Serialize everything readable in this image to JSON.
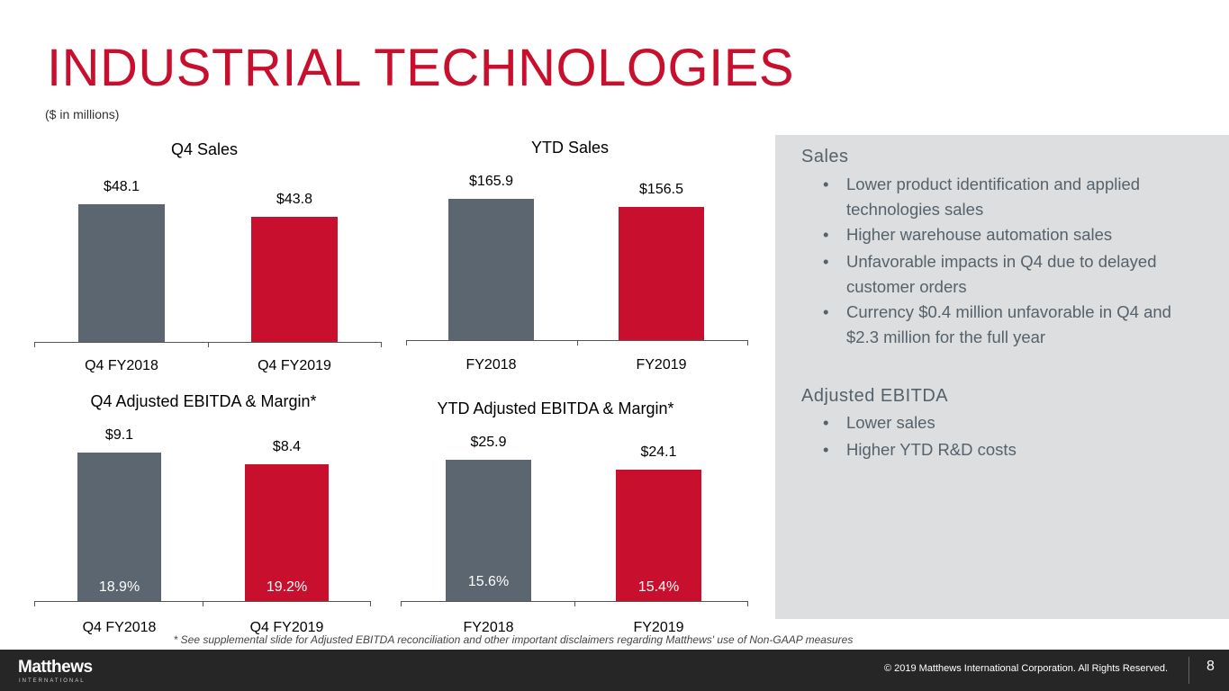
{
  "header": {
    "title": "INDUSTRIAL TECHNOLOGIES",
    "subtitle": "($ in millions)"
  },
  "colors": {
    "accent": "#c8102e",
    "gray_bar": "#5b6670",
    "panel": "#dcdedf",
    "footer": "#262626"
  },
  "chart_data": [
    {
      "type": "bar",
      "title": "Q4 Sales",
      "categories": [
        "Q4 FY2018",
        "Q4 FY2019"
      ],
      "values": [
        48.1,
        43.8
      ],
      "value_labels": [
        "$48.1",
        "$43.8"
      ],
      "ylim": [
        0,
        63
      ],
      "colors": [
        "#5b6670",
        "#c8102e"
      ]
    },
    {
      "type": "bar",
      "title": "YTD Sales",
      "categories": [
        "FY2018",
        "FY2019"
      ],
      "values": [
        165.9,
        156.5
      ],
      "value_labels": [
        "$165.9",
        "$156.5"
      ],
      "ylim": [
        0,
        212
      ],
      "colors": [
        "#5b6670",
        "#c8102e"
      ]
    },
    {
      "type": "bar",
      "title": "Q4 Adjusted EBITDA  & Margin*",
      "categories": [
        "Q4 FY2018",
        "Q4 FY2019"
      ],
      "values": [
        9.1,
        8.4
      ],
      "value_labels": [
        "$9.1",
        "$8.4"
      ],
      "margins": [
        "18.9%",
        "19.2%"
      ],
      "ylim": [
        0,
        12.7
      ],
      "colors": [
        "#5b6670",
        "#c8102e"
      ]
    },
    {
      "type": "bar",
      "title": "YTD  Adjusted EBITDA  & Margin*",
      "categories": [
        "FY2018",
        "FY2019"
      ],
      "values": [
        25.9,
        24.1
      ],
      "value_labels": [
        "$25.9",
        "$24.1"
      ],
      "margins": [
        "15.6%",
        "15.4%"
      ],
      "ylim": [
        0,
        38
      ],
      "colors": [
        "#5b6670",
        "#c8102e"
      ]
    }
  ],
  "panel": {
    "sales_heading": "Sales",
    "sales_bullets": [
      "Lower product identification and applied technologies sales",
      "Higher warehouse automation sales",
      "Unfavorable impacts in Q4 due to delayed customer orders",
      "Currency $0.4 million unfavorable in Q4 and $2.3 million for the full year"
    ],
    "ebitda_heading": "Adjusted EBITDA",
    "ebitda_bullets": [
      "Lower sales",
      "Higher YTD R&D costs"
    ]
  },
  "footnote": "* See supplemental slide for Adjusted EBITDA reconciliation and other important disclaimers regarding Matthews' use of Non-GAAP measures",
  "footer": {
    "logo": "Matthews",
    "logo_sub": "INTERNATIONAL",
    "copyright": "© 2019 Matthews International Corporation. All Rights Reserved.",
    "page_number": "8"
  }
}
